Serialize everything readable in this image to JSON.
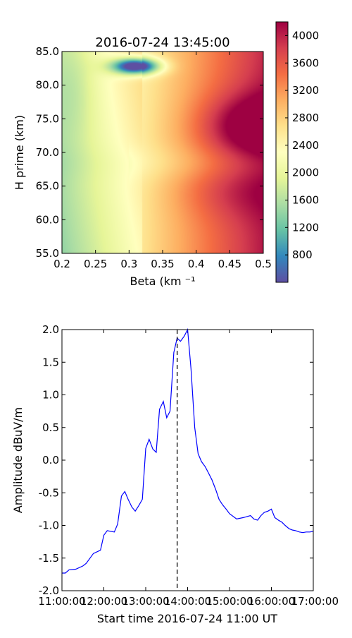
{
  "chart_data": [
    {
      "type": "heatmap",
      "title": "2016-07-24 13:45:00",
      "xlabel": "Beta (km ⁻¹",
      "ylabel": "H prime (km)",
      "xlim": [
        0.2,
        0.5
      ],
      "ylim": [
        55.0,
        85.0
      ],
      "xticks": [
        "0.2",
        "0.25",
        "0.3",
        "0.35",
        "0.4",
        "0.45",
        "0.5"
      ],
      "yticks": [
        "55.0",
        "60.0",
        "65.0",
        "70.0",
        "75.0",
        "80.0",
        "85.0"
      ],
      "colormap": "Spectral_r",
      "colorbar": {
        "min": 400,
        "max": 4200,
        "ticks": [
          "800",
          "1200",
          "1600",
          "2000",
          "2400",
          "2800",
          "3200",
          "3600",
          "4000"
        ]
      },
      "minimum": {
        "beta": 0.31,
        "h": 82.8,
        "value": 450
      },
      "maximum": {
        "beta": 0.49,
        "h": 74.0,
        "value": 4150
      }
    },
    {
      "type": "line",
      "xlabel": "Start time 2016-07-24 11:00 UT",
      "ylabel": "Amplitude dBuV/m",
      "xlim": [
        11.0,
        17.0
      ],
      "ylim": [
        -2.0,
        2.0
      ],
      "xticks": [
        "11:00:00",
        "12:00:00",
        "13:00:00",
        "14:00:00",
        "15:00:00",
        "16:00:00",
        "17:00:00"
      ],
      "yticks": [
        "2.0",
        "1.5",
        "1.0",
        "0.5",
        "0.0",
        "-0.5",
        "-1.0",
        "-1.5",
        "-2.0"
      ],
      "series": [
        {
          "color": "#0000ff",
          "x": [
            11.0,
            11.08,
            11.17,
            11.33,
            11.5,
            11.58,
            11.67,
            11.75,
            11.92,
            12.0,
            12.08,
            12.25,
            12.33,
            12.42,
            12.5,
            12.58,
            12.67,
            12.75,
            12.83,
            12.92,
            13.0,
            13.08,
            13.17,
            13.25,
            13.33,
            13.42,
            13.5,
            13.58,
            13.67,
            13.75,
            13.83,
            13.92,
            14.0,
            14.08,
            14.17,
            14.25,
            14.33,
            14.42,
            14.5,
            14.58,
            14.67,
            14.75,
            14.83,
            14.92,
            15.0,
            15.17,
            15.33,
            15.5,
            15.58,
            15.67,
            15.75,
            15.83,
            15.92,
            16.0,
            16.08,
            16.17,
            16.25,
            16.33,
            16.42,
            16.5,
            16.58,
            16.67,
            16.75,
            16.83,
            16.92,
            17.0
          ],
          "y": [
            -1.73,
            -1.73,
            -1.68,
            -1.67,
            -1.62,
            -1.58,
            -1.5,
            -1.43,
            -1.38,
            -1.15,
            -1.08,
            -1.1,
            -0.98,
            -0.55,
            -0.48,
            -0.6,
            -0.72,
            -0.78,
            -0.7,
            -0.6,
            0.18,
            0.32,
            0.17,
            0.12,
            0.78,
            0.9,
            0.65,
            0.75,
            1.65,
            1.87,
            1.82,
            1.9,
            2.0,
            1.4,
            0.5,
            0.1,
            -0.02,
            -0.1,
            -0.2,
            -0.3,
            -0.45,
            -0.6,
            -0.68,
            -0.75,
            -0.82,
            -0.9,
            -0.88,
            -0.85,
            -0.9,
            -0.92,
            -0.85,
            -0.8,
            -0.78,
            -0.75,
            -0.88,
            -0.92,
            -0.95,
            -1.0,
            -1.05,
            -1.07,
            -1.08,
            -1.1,
            -1.11,
            -1.1,
            -1.1,
            -1.09
          ]
        }
      ],
      "marker_line": {
        "x": 13.75,
        "style": "dashed",
        "color": "#000000"
      }
    }
  ]
}
